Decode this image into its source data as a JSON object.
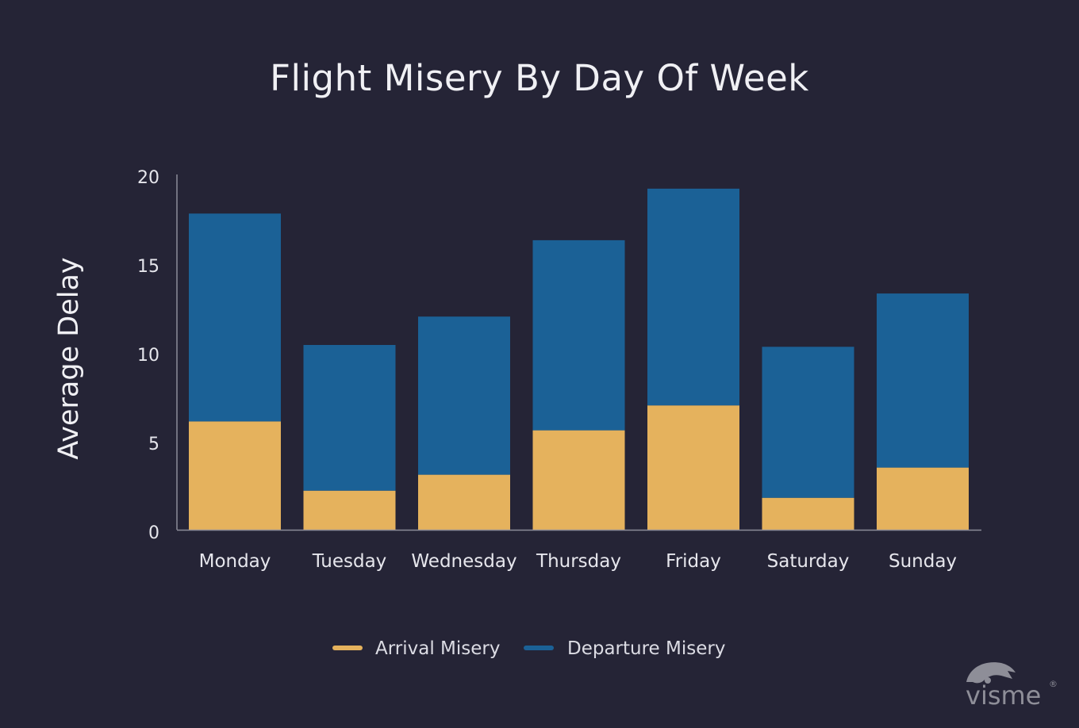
{
  "chart_data": {
    "type": "bar",
    "stacked": true,
    "title": "Flight Misery By Day Of Week",
    "xlabel": "",
    "ylabel": "Average Delay",
    "ylim": [
      0,
      20
    ],
    "yticks": [
      0,
      5,
      10,
      15,
      20
    ],
    "categories": [
      "Monday",
      "Tuesday",
      "Wednesday",
      "Thursday",
      "Friday",
      "Saturday",
      "Sunday"
    ],
    "series": [
      {
        "name": "Arrival Misery",
        "color": "#e5b25d",
        "values": [
          6.1,
          2.2,
          3.1,
          5.6,
          7.0,
          1.8,
          3.5
        ]
      },
      {
        "name": "Departure Misery",
        "color": "#1b6196",
        "values": [
          11.7,
          8.2,
          8.9,
          10.7,
          12.2,
          8.5,
          9.8
        ]
      }
    ],
    "grid": false,
    "legend": "bottom-center"
  },
  "watermark": {
    "text": "visme"
  },
  "colors": {
    "background": "#252436",
    "axis": "#8c8c98"
  }
}
